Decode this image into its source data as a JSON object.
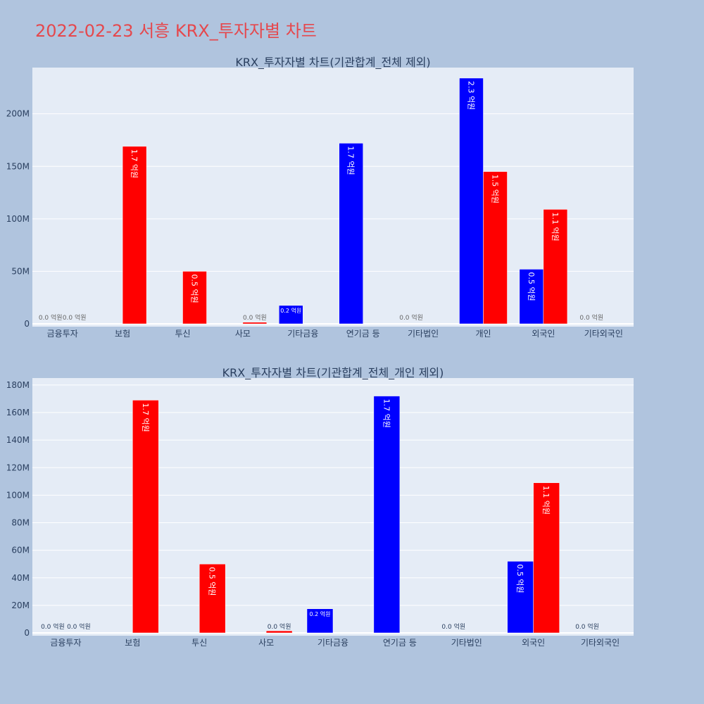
{
  "page_title": "2022-02-23 서흥 KRX_투자자별 차트",
  "colors": {
    "background": "#b0c4de",
    "plot_bg": "#e5ecf6",
    "buy": "#0000ff",
    "sell": "#ff0000",
    "title": "#e5484d",
    "text": "#2a3f5f"
  },
  "chart_data": [
    {
      "type": "bar",
      "title": "KRX_투자자별 차트(기관합계_전체 제외)",
      "categories": [
        "금융투자",
        "보험",
        "투신",
        "사모",
        "기타금융",
        "연기금 등",
        "기타법인",
        "개인",
        "외국인",
        "기타외국인"
      ],
      "ylim": [
        0,
        240000000
      ],
      "yticks": [
        0,
        50000000,
        100000000,
        150000000,
        200000000
      ],
      "ytick_labels": [
        "0",
        "50M",
        "100M",
        "150M",
        "200M"
      ],
      "grid": true,
      "series": [
        {
          "color": "#0000ff",
          "values": [
            0,
            0,
            0,
            0,
            17500000,
            172000000,
            0,
            234000000,
            52000000,
            0
          ],
          "labels": [
            "0.0 억원",
            "",
            "",
            "",
            "0.2 억원",
            "1.7 억원",
            "0.0 억원",
            "2.3 억원",
            "0.5 억원",
            "0.0 억원"
          ]
        },
        {
          "color": "#ff0000",
          "values": [
            0,
            169000000,
            50000000,
            1500000,
            0,
            0,
            0,
            145000000,
            109000000,
            0
          ],
          "labels": [
            "0.0 억원",
            "1.7 억원",
            "0.5 억원",
            "0.0 억원",
            "",
            "",
            "",
            "1.5 억원",
            "1.1 억원",
            ""
          ]
        }
      ]
    },
    {
      "type": "bar",
      "title": "KRX_투자자별 차트(기관합계_전체_개인 제외)",
      "categories": [
        "금융투자",
        "보험",
        "투신",
        "사모",
        "기타금융",
        "연기금 등",
        "기타법인",
        "외국인",
        "기타외국인"
      ],
      "ylim": [
        0,
        182000000
      ],
      "yticks": [
        0,
        20000000,
        40000000,
        60000000,
        80000000,
        100000000,
        120000000,
        140000000,
        160000000,
        180000000
      ],
      "ytick_labels": [
        "0",
        "20M",
        "40M",
        "60M",
        "80M",
        "100M",
        "120M",
        "140M",
        "160M",
        "180M"
      ],
      "grid": true,
      "series": [
        {
          "color": "#0000ff",
          "values": [
            0,
            0,
            0,
            0,
            17500000,
            172000000,
            0,
            52000000,
            0
          ],
          "labels": [
            "0.0 억원",
            "",
            "",
            "",
            "0.2 억원",
            "1.7 억원",
            "0.0 억원",
            "0.5 억원",
            "0.0 억원"
          ]
        },
        {
          "color": "#ff0000",
          "values": [
            0,
            169000000,
            50000000,
            1500000,
            0,
            0,
            0,
            109000000,
            0
          ],
          "labels": [
            "0.0 억원",
            "1.7 억원",
            "0.5 억원",
            "0.0 억원",
            "",
            "",
            "",
            "1.1 억원",
            ""
          ]
        }
      ]
    }
  ]
}
